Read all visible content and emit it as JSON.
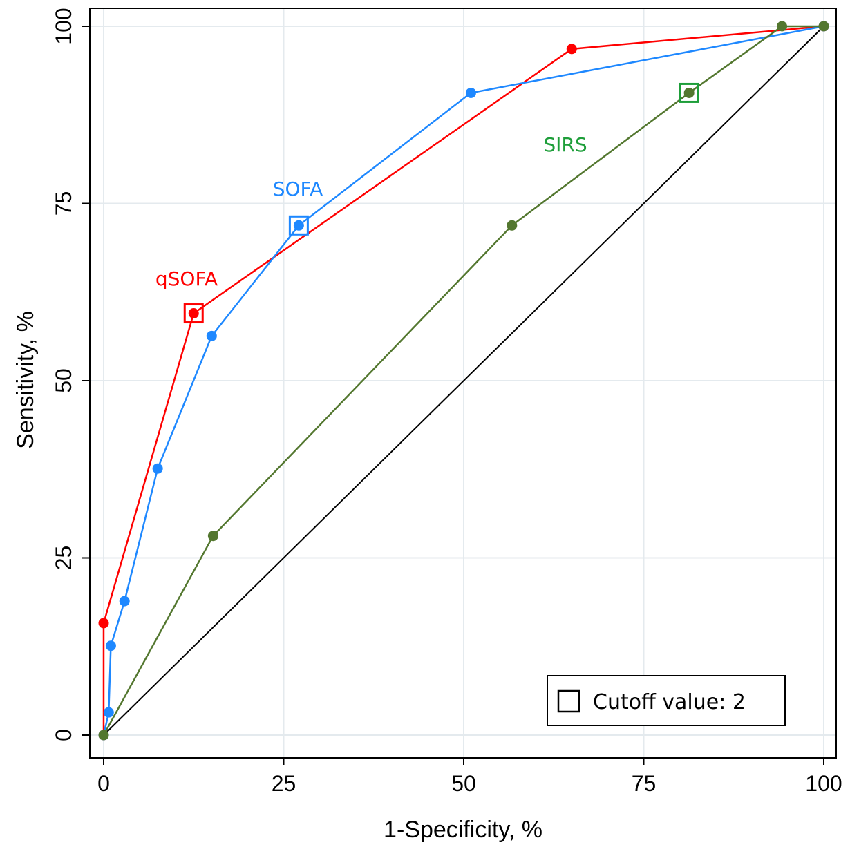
{
  "chart_data": {
    "type": "line",
    "xlabel": "1-Specificity, %",
    "ylabel": "Sensitivity, %",
    "xlim": [
      0,
      100
    ],
    "ylim": [
      0,
      100
    ],
    "xticks": [
      0,
      25,
      50,
      75,
      100
    ],
    "yticks": [
      0,
      25,
      50,
      75,
      100
    ],
    "grid": true,
    "series": [
      {
        "name": "qSOFA",
        "color": "#ff0000",
        "points": [
          [
            0,
            0
          ],
          [
            0,
            15.8
          ],
          [
            12.5,
            59.5
          ],
          [
            65,
            96.8
          ],
          [
            100,
            100
          ]
        ],
        "cutoff_point": [
          12.5,
          59.5
        ]
      },
      {
        "name": "SOFA",
        "color": "#1e88ff",
        "points": [
          [
            0,
            0
          ],
          [
            0.7,
            3.2
          ],
          [
            1,
            12.6
          ],
          [
            2.9,
            18.9
          ],
          [
            7.5,
            37.6
          ],
          [
            15,
            56.3
          ],
          [
            27.1,
            71.9
          ],
          [
            51,
            90.6
          ],
          [
            100,
            100
          ]
        ],
        "cutoff_point": [
          27.1,
          71.9
        ]
      },
      {
        "name": "SIRS",
        "color": "#53772f",
        "label_color": "#1e9e3a",
        "points": [
          [
            0,
            0
          ],
          [
            15.2,
            28.1
          ],
          [
            56.7,
            71.9
          ],
          [
            81.3,
            90.6
          ],
          [
            94.2,
            100
          ],
          [
            100,
            100
          ]
        ],
        "cutoff_point": [
          81.3,
          90.6
        ]
      }
    ],
    "reference_line": [
      [
        0,
        0
      ],
      [
        100,
        100
      ]
    ],
    "legend": {
      "label": "Cutoff value: 2",
      "position": "bottom-right"
    }
  }
}
